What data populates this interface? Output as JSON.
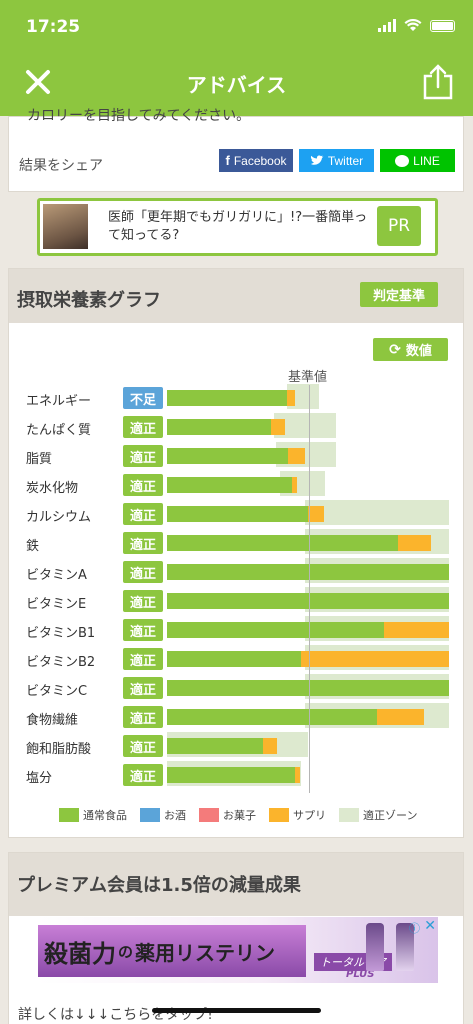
{
  "status_bar": {
    "time": "17:25"
  },
  "nav": {
    "title": "アドバイス"
  },
  "advice_card": {
    "cut_text": "カロリーを目指してみてください。",
    "share_label": "結果をシェア",
    "facebook_label": "Facebook",
    "twitter_label": "Twitter",
    "line_label": "LINE"
  },
  "ad_banner": {
    "text": "医師「更年期でもガリガリに」!?一番簡単って知ってる?",
    "pr_label": "PR"
  },
  "graph": {
    "title": "摂取栄養素グラフ",
    "criteria_button": "判定基準",
    "value_button": "数値",
    "baseline_label": "基準値",
    "legend": [
      {
        "label": "通常食品",
        "color": "#8dc63f"
      },
      {
        "label": "お酒",
        "color": "#5ba4d9"
      },
      {
        "label": "お菓子",
        "color": "#f47b7b"
      },
      {
        "label": "サプリ",
        "color": "#fbb42c"
      },
      {
        "label": "適正ゾーン",
        "color": "#dde9cf"
      }
    ]
  },
  "chart_data": {
    "type": "bar",
    "orientation": "horizontal",
    "stacked": true,
    "unit": "fraction of 基準値 (1.0 = 基準値)",
    "categories": [
      "エネルギー",
      "たんぱく質",
      "脂質",
      "炭水化物",
      "カルシウム",
      "鉄",
      "ビタミンA",
      "ビタミンE",
      "ビタミンB1",
      "ビタミンB2",
      "ビタミンC",
      "食物繊維",
      "飽和脂肪酸",
      "塩分"
    ],
    "status": [
      "不足",
      "適正",
      "適正",
      "適正",
      "適正",
      "適正",
      "適正",
      "適正",
      "適正",
      "適正",
      "適正",
      "適正",
      "適正",
      "適正"
    ],
    "series": [
      {
        "name": "通常食品",
        "values": [
          0.85,
          0.74,
          0.86,
          0.89,
          1.0,
          1.64,
          2.0,
          2.0,
          1.54,
          0.95,
          2.0,
          1.49,
          0.68,
          0.91
        ]
      },
      {
        "name": "サプリ",
        "values": [
          0.06,
          0.1,
          0.12,
          0.03,
          0.11,
          0.23,
          0.0,
          0.0,
          0.46,
          1.05,
          0.0,
          0.33,
          0.1,
          0.03
        ]
      }
    ],
    "adequate_zone": [
      [
        0.85,
        1.08
      ],
      [
        0.76,
        1.2
      ],
      [
        0.77,
        1.2
      ],
      [
        0.8,
        1.12
      ],
      [
        0.98,
        2.0
      ],
      [
        0.98,
        2.0
      ],
      [
        0.98,
        2.0
      ],
      [
        0.98,
        2.0
      ],
      [
        0.98,
        2.0
      ],
      [
        0.98,
        2.0
      ],
      [
        0.98,
        2.0
      ],
      [
        0.98,
        2.0
      ],
      [
        0.0,
        1.0
      ],
      [
        0.0,
        0.95
      ]
    ],
    "baseline": 1.0,
    "xlim": [
      0,
      2.0
    ]
  },
  "premium": {
    "title": "プレミアム会員は1.5倍の減量成果"
  },
  "bottom_ad": {
    "headline_a": "殺菌力",
    "headline_b": "の",
    "headline_c": "薬用リステリン",
    "product": "トータルケア",
    "product_sub": "PLUS"
  },
  "cut_bottom_text": "詳しくは↓↓↓こちらをタップ!"
}
